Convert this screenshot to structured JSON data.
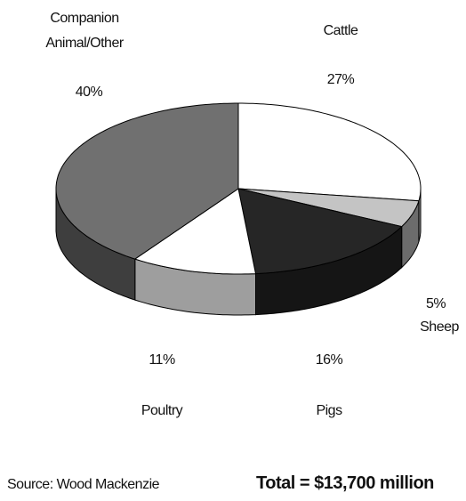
{
  "chart_data": {
    "type": "pie",
    "categories": [
      "Cattle",
      "Sheep",
      "Pigs",
      "Poultry",
      "Companion Animal/Other"
    ],
    "values": [
      27,
      5,
      16,
      11,
      40
    ],
    "value_labels": [
      "27%",
      "5%",
      "16%",
      "11%",
      "40%"
    ],
    "colors": [
      "#ffffff",
      "#c4c4c4",
      "#262626",
      "#ffffff",
      "#707070"
    ],
    "source": "Source: Wood Mackenzie",
    "note": "Total = $13,700 million"
  }
}
